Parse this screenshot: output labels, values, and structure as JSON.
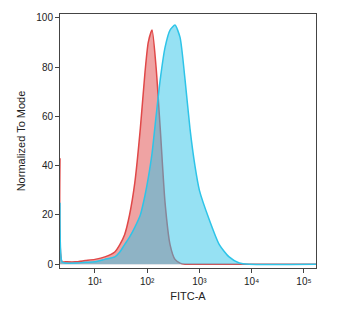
{
  "chart_data": {
    "type": "area",
    "x_label": "FITC-A",
    "y_label": "Normalized To Mode",
    "log": "x",
    "grid": false,
    "xlim": [
      2.15,
      170000
    ],
    "xticks": [
      {
        "value": 10,
        "label": "10¹"
      },
      {
        "value": 100,
        "label": "10²"
      },
      {
        "value": 1000,
        "label": "10³"
      },
      {
        "value": 10000,
        "label": "10⁴"
      },
      {
        "value": 100000,
        "label": "10⁵"
      }
    ],
    "ylim": [
      -1.5,
      101.5
    ],
    "yticks": [
      0,
      20,
      40,
      60,
      80,
      100
    ],
    "x": [
      2.15,
      2.35,
      2.7,
      4.2,
      6.5,
      10,
      15.5,
      24,
      30,
      37,
      46,
      58,
      74,
      91,
      105,
      124,
      148,
      178,
      220,
      274,
      341,
      426,
      530,
      660,
      820,
      1000,
      1550,
      2400,
      3700,
      5800,
      9000,
      170000
    ],
    "series": [
      {
        "color": "#e04848",
        "values": [
          43,
          1,
          1,
          1,
          1.5,
          2,
          3,
          5,
          8,
          12,
          20,
          33,
          55,
          78,
          90,
          95,
          80,
          55,
          25,
          8,
          2,
          0.5,
          0,
          0,
          0,
          0,
          0,
          0,
          0,
          0,
          0,
          0
        ]
      },
      {
        "color": "#2ec4e8",
        "values": [
          25,
          1,
          0.5,
          0.5,
          0.8,
          1,
          2,
          3,
          5,
          8,
          11,
          15,
          20,
          28,
          35,
          45,
          60,
          75,
          88,
          95,
          97,
          92,
          75,
          55,
          40,
          30,
          18,
          8,
          3,
          0.5,
          0,
          0
        ]
      }
    ]
  }
}
